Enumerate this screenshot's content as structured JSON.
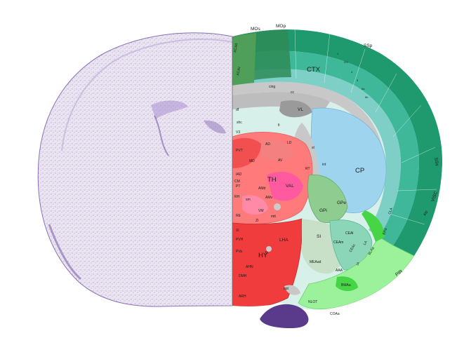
{
  "atlas": {
    "labels": {
      "MOs": "MOs",
      "MOp": "MOp",
      "ACAd": "ACAd",
      "ACAv": "ACAv",
      "SSp": "SSp",
      "SSs": "SSs",
      "VISC": "VISC",
      "AIp": "AIp",
      "PIR": "PIR",
      "CTX": "CTX",
      "cing": "cing",
      "cc": "cc",
      "VL": "VL",
      "df": "df",
      "fi": "fi",
      "shc": "shc",
      "V3": "V3",
      "PVT": "PVT",
      "AD": "AD",
      "LD": "LD",
      "AV": "AV",
      "MD": "MD",
      "TH": "TH",
      "AMd": "AMd",
      "AMv": "AMv",
      "VAL": "VAL",
      "CM": "CM",
      "RH": "RH",
      "RE": "RE",
      "VM": "VM",
      "RT": "RT",
      "CP": "CP",
      "GPe": "GPe",
      "GPi": "GPi",
      "SI": "SI",
      "ZI": "ZI",
      "LHA": "LHA",
      "HY": "HY",
      "CEAl": "CEAl",
      "CEAm": "CEAm",
      "CEAc": "CEAc",
      "MEAad": "MEAad",
      "AAA": "AAA",
      "IA": "IA",
      "BLAa": "BLAa",
      "LA": "LA",
      "BMAa": "BMAa",
      "EPd": "EPd",
      "CLA": "CLA",
      "NLOT": "NLOT",
      "COAa": "COAa",
      "opt": "opt",
      "int": "int",
      "st": "st",
      "sm": "sm",
      "fx": "fx",
      "mtt": "mtt",
      "PVH": "PVH",
      "ARH": "ARH",
      "AHN": "AHN",
      "DMH": "DMH",
      "PVi": "PVi",
      "SCH": "SCH",
      "Xi": "Xi",
      "PT": "PT",
      "IAD": "IAD",
      "PVa": "PVa",
      "MM": "MM"
    },
    "layer_numbers": [
      "1",
      "2/3",
      "4",
      "5",
      "6a",
      "6b"
    ]
  },
  "colors": {
    "cortex_dark": "#1f9a6e",
    "cortex_mid": "#3fb89a",
    "cortex_light": "#7ed0c6",
    "motor": "#2e8b57",
    "fiber": "#c8c8c8",
    "fiber_dark": "#9a9a9a",
    "thalamus": "#ff7a7a",
    "thalamus_dark": "#f25050",
    "thalamus_pink": "#ff5aa0",
    "hypothalamus": "#f03c3c",
    "striatum": "#9fd4ef",
    "pallidum": "#8fcc8f",
    "amygdala": "#8bd6b8",
    "olfactory": "#9bf29b",
    "olfactory_dark": "#45d545",
    "nissl": "#7a5aa8",
    "nissl_bg": "#e8e2f0"
  }
}
